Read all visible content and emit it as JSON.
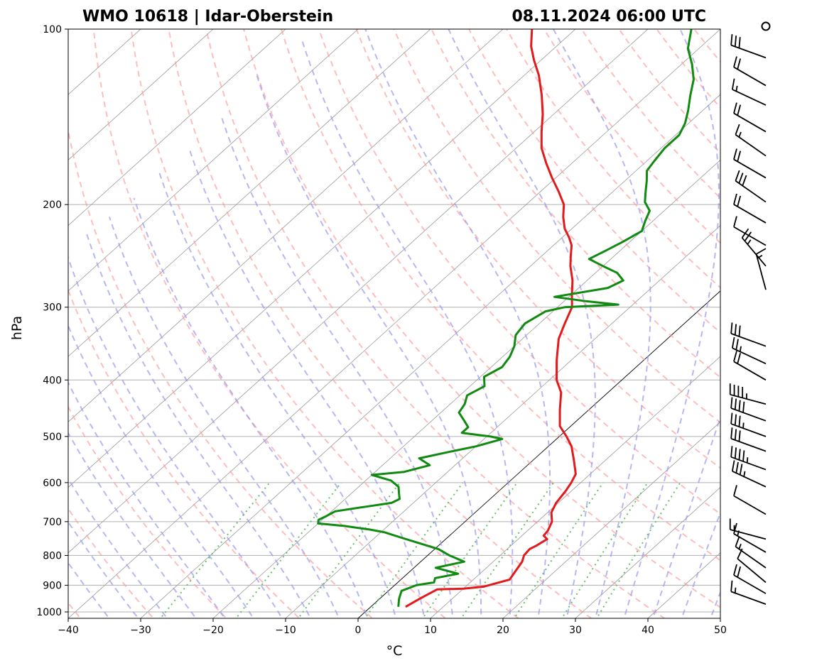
{
  "header": {
    "station": "WMO 10618 | Idar-Oberstein",
    "datetime": "08.11.2024 06:00 UTC"
  },
  "chart_data": {
    "type": "skew-t log-p",
    "title_left": "WMO 10618 | Idar-Oberstein",
    "title_right": "08.11.2024 06:00 UTC",
    "xlabel": "°C",
    "ylabel": "hPa",
    "xlim": [
      -40,
      50
    ],
    "ylim": [
      1020,
      100
    ],
    "y_scale": "log",
    "x_ticks": [
      "−40",
      "−30",
      "−20",
      "−10",
      "0",
      "10",
      "20",
      "30",
      "40",
      "50"
    ],
    "x_tick_values": [
      -40,
      -30,
      -20,
      -10,
      0,
      10,
      20,
      30,
      40,
      50
    ],
    "y_ticks": [
      "100",
      "200",
      "300",
      "400",
      "500",
      "600",
      "700",
      "800",
      "900",
      "1000"
    ],
    "y_tick_values": [
      100,
      200,
      300,
      400,
      500,
      600,
      700,
      800,
      900,
      1000
    ],
    "grid": true,
    "colors": {
      "temperature": "#e31a1c",
      "dewpoint": "#118a11",
      "dry_adiabat": "#ff9999",
      "moist_adiabat": "#9999ee",
      "mixing_ratio": "#55bb55",
      "isotherm": "#999999",
      "zero_isotherm": "#000000"
    },
    "series": [
      {
        "key": "temperature",
        "points": [
          [
            980,
            4.8
          ],
          [
            950,
            5.5
          ],
          [
            915,
            6.5
          ],
          [
            912,
            10.0
          ],
          [
            905,
            12.5
          ],
          [
            890,
            14.0
          ],
          [
            880,
            15.0
          ],
          [
            850,
            14.5
          ],
          [
            820,
            14.0
          ],
          [
            800,
            13.3
          ],
          [
            780,
            13.1
          ],
          [
            770,
            13.5
          ],
          [
            750,
            14.0
          ],
          [
            740,
            13.0
          ],
          [
            725,
            12.8
          ],
          [
            700,
            12.0
          ],
          [
            675,
            10.5
          ],
          [
            650,
            9.7
          ],
          [
            620,
            9.2
          ],
          [
            600,
            8.7
          ],
          [
            580,
            8.0
          ],
          [
            550,
            5.7
          ],
          [
            520,
            3.2
          ],
          [
            500,
            1.0
          ],
          [
            480,
            -1.5
          ],
          [
            450,
            -4.0
          ],
          [
            420,
            -6.5
          ],
          [
            400,
            -9.0
          ],
          [
            370,
            -12.0
          ],
          [
            340,
            -15.0
          ],
          [
            320,
            -16.5
          ],
          [
            300,
            -18.0
          ],
          [
            285,
            -20.0
          ],
          [
            270,
            -22.0
          ],
          [
            255,
            -24.5
          ],
          [
            245,
            -26.0
          ],
          [
            235,
            -27.5
          ],
          [
            228,
            -29.0
          ],
          [
            220,
            -31.0
          ],
          [
            210,
            -33.0
          ],
          [
            200,
            -34.8
          ],
          [
            190,
            -37.5
          ],
          [
            180,
            -40.5
          ],
          [
            170,
            -43.5
          ],
          [
            160,
            -46.5
          ],
          [
            150,
            -49.0
          ],
          [
            140,
            -51.5
          ],
          [
            130,
            -54.5
          ],
          [
            120,
            -58.0
          ],
          [
            113,
            -61.0
          ],
          [
            107,
            -63.5
          ],
          [
            100,
            -66.0
          ]
        ]
      },
      {
        "key": "dewpoint",
        "points": [
          [
            980,
            3.8
          ],
          [
            950,
            2.7
          ],
          [
            920,
            1.8
          ],
          [
            900,
            3.0
          ],
          [
            890,
            5.0
          ],
          [
            875,
            4.5
          ],
          [
            860,
            7.0
          ],
          [
            840,
            3.0
          ],
          [
            820,
            6.0
          ],
          [
            800,
            3.0
          ],
          [
            780,
            0.5
          ],
          [
            760,
            -3.5
          ],
          [
            745,
            -6.5
          ],
          [
            730,
            -9.5
          ],
          [
            722,
            -12.0
          ],
          [
            712,
            -16.0
          ],
          [
            705,
            -20.0
          ],
          [
            695,
            -20.5
          ],
          [
            685,
            -20.0
          ],
          [
            672,
            -19.5
          ],
          [
            660,
            -16.0
          ],
          [
            650,
            -13.0
          ],
          [
            640,
            -12.5
          ],
          [
            625,
            -13.5
          ],
          [
            610,
            -14.5
          ],
          [
            595,
            -16.5
          ],
          [
            582,
            -20.0
          ],
          [
            575,
            -16.0
          ],
          [
            560,
            -13.5
          ],
          [
            545,
            -16.0
          ],
          [
            530,
            -12.5
          ],
          [
            520,
            -10.0
          ],
          [
            505,
            -7.5
          ],
          [
            500,
            -9.5
          ],
          [
            493,
            -14.0
          ],
          [
            482,
            -14.0
          ],
          [
            470,
            -15.5
          ],
          [
            455,
            -17.5
          ],
          [
            440,
            -18.0
          ],
          [
            425,
            -19.0
          ],
          [
            410,
            -18.0
          ],
          [
            395,
            -19.5
          ],
          [
            380,
            -18.5
          ],
          [
            365,
            -19.0
          ],
          [
            350,
            -20.0
          ],
          [
            335,
            -21.5
          ],
          [
            320,
            -22.0
          ],
          [
            305,
            -21.0
          ],
          [
            300,
            -19.0
          ],
          [
            297,
            -12.0
          ],
          [
            293,
            -17.0
          ],
          [
            288,
            -22.0
          ],
          [
            278,
            -16.0
          ],
          [
            270,
            -15.0
          ],
          [
            262,
            -17.0
          ],
          [
            255,
            -20.0
          ],
          [
            248,
            -23.0
          ],
          [
            240,
            -22.0
          ],
          [
            232,
            -21.0
          ],
          [
            222,
            -20.0
          ],
          [
            214,
            -21.0
          ],
          [
            205,
            -22.0
          ],
          [
            198,
            -24.0
          ],
          [
            190,
            -25.5
          ],
          [
            182,
            -27.0
          ],
          [
            175,
            -28.5
          ],
          [
            168,
            -29.0
          ],
          [
            160,
            -29.5
          ],
          [
            152,
            -29.5
          ],
          [
            145,
            -30.5
          ],
          [
            138,
            -32.0
          ],
          [
            130,
            -34.0
          ],
          [
            122,
            -36.0
          ],
          [
            115,
            -38.5
          ],
          [
            108,
            -41.5
          ],
          [
            100,
            -44.0
          ]
        ]
      }
    ],
    "wind_barbs": {
      "note": "Wind barbs along the right side",
      "levels": [
        {
          "p": 100,
          "calm": true
        },
        {
          "p": 112,
          "dir": 290,
          "spd": 30
        },
        {
          "p": 125,
          "dir": 300,
          "spd": 20
        },
        {
          "p": 135,
          "dir": 295,
          "spd": 15
        },
        {
          "p": 150,
          "dir": 300,
          "spd": 20
        },
        {
          "p": 165,
          "dir": 305,
          "spd": 15
        },
        {
          "p": 180,
          "dir": 300,
          "spd": 20
        },
        {
          "p": 198,
          "dir": 305,
          "spd": 30
        },
        {
          "p": 215,
          "dir": 300,
          "spd": 20
        },
        {
          "p": 235,
          "dir": 300,
          "spd": 10
        },
        {
          "p": 255,
          "dir": 320,
          "spd": 25
        },
        {
          "p": 280,
          "dir": 345,
          "spd": 15
        },
        {
          "p": 350,
          "dir": 290,
          "spd": 30
        },
        {
          "p": 375,
          "dir": 295,
          "spd": 25
        },
        {
          "p": 400,
          "dir": 300,
          "spd": 20
        },
        {
          "p": 440,
          "dir": 285,
          "spd": 45
        },
        {
          "p": 470,
          "dir": 290,
          "spd": 40
        },
        {
          "p": 500,
          "dir": 290,
          "spd": 35
        },
        {
          "p": 530,
          "dir": 290,
          "spd": 30
        },
        {
          "p": 570,
          "dir": 290,
          "spd": 45
        },
        {
          "p": 610,
          "dir": 295,
          "spd": 35
        },
        {
          "p": 680,
          "dir": 300,
          "spd": 10
        },
        {
          "p": 750,
          "dir": 285,
          "spd": 15
        },
        {
          "p": 790,
          "dir": 300,
          "spd": 15
        },
        {
          "p": 840,
          "dir": 305,
          "spd": 15
        },
        {
          "p": 890,
          "dir": 310,
          "spd": 10
        },
        {
          "p": 930,
          "dir": 300,
          "spd": 20
        },
        {
          "p": 970,
          "dir": 290,
          "spd": 15
        }
      ]
    }
  }
}
